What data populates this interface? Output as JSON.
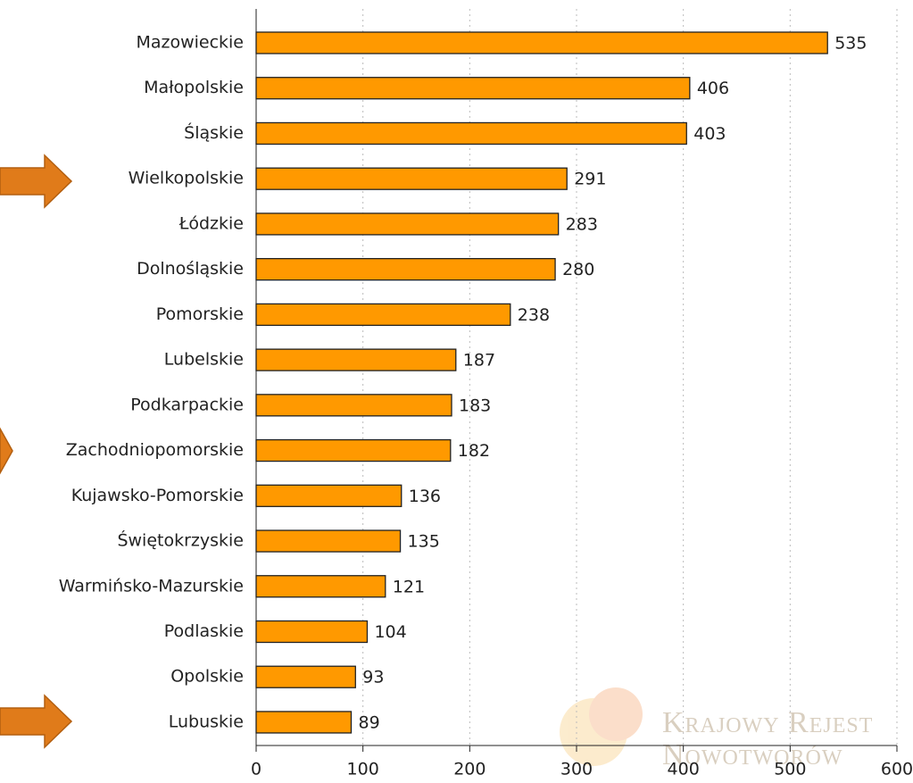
{
  "chart_data": {
    "type": "barh",
    "categories": [
      "Mazowieckie",
      "Małopolskie",
      "Śląskie",
      "Wielkopolskie",
      "Łódzkie",
      "Dolnośląskie",
      "Pomorskie",
      "Lubelskie",
      "Podkarpackie",
      "Zachodniopomorskie",
      "Kujawsko-Pomorskie",
      "Świętokrzyskie",
      "Warmińsko-Mazurskie",
      "Podlaskie",
      "Opolskie",
      "Lubuskie"
    ],
    "values": [
      535,
      406,
      403,
      291,
      283,
      280,
      238,
      187,
      183,
      182,
      136,
      135,
      121,
      104,
      93,
      89
    ],
    "color": "#ff9900",
    "xlim": [
      0,
      600
    ],
    "xticks": [
      0,
      100,
      200,
      300,
      400,
      500,
      600
    ],
    "grid": true,
    "annotations": [
      "Krajowy Rejest",
      "Nowotworów"
    ]
  }
}
